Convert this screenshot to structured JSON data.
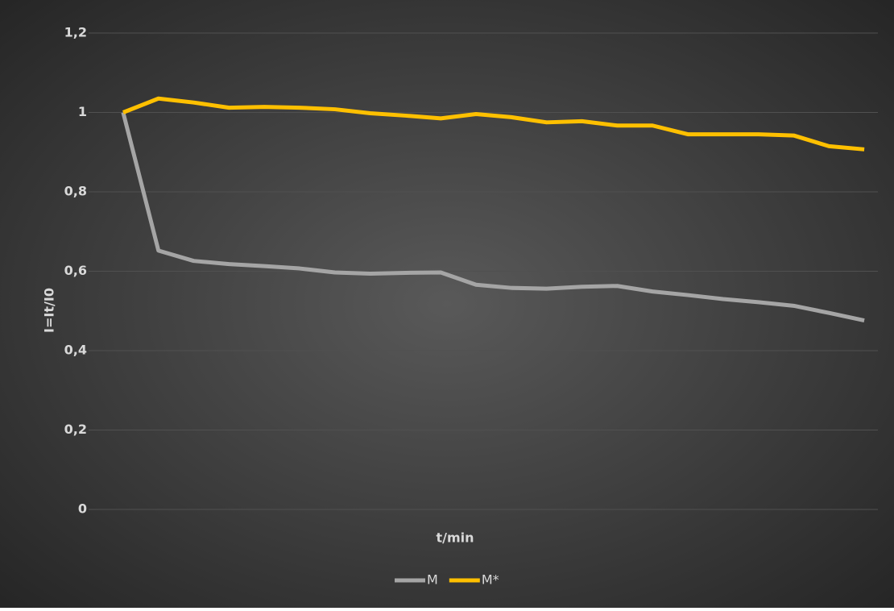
{
  "chart_data": {
    "type": "line",
    "x_label": "t/min",
    "y_label": "I=It/I0",
    "categories": [
      null,
      null,
      null,
      null,
      null,
      null,
      null,
      null,
      null,
      null,
      null,
      null,
      null,
      null,
      null,
      null,
      null,
      null,
      null,
      null,
      null,
      null
    ],
    "series": [
      {
        "name": "M",
        "color": "#a5a5a5",
        "values": [
          1.0,
          0.652,
          0.626,
          0.618,
          0.613,
          0.607,
          0.597,
          0.594,
          0.596,
          0.597,
          0.566,
          0.558,
          0.556,
          0.561,
          0.563,
          0.549,
          0.54,
          0.53,
          0.522,
          0.513,
          0.495,
          0.476
        ]
      },
      {
        "name": "M*",
        "color": "#ffc000",
        "values": [
          1.0,
          1.035,
          1.025,
          1.012,
          1.014,
          1.012,
          1.008,
          0.998,
          0.992,
          0.985,
          0.996,
          0.988,
          0.975,
          0.978,
          0.967,
          0.967,
          0.945,
          0.945,
          0.945,
          0.942,
          0.915,
          0.907
        ]
      }
    ],
    "ylim": [
      0,
      1.2
    ],
    "yticks": [
      0,
      {
        "value": 0.2,
        "label": "0,2"
      },
      {
        "value": 0.4,
        "label": "0,4"
      },
      {
        "value": 0.6,
        "label": "0,6"
      },
      {
        "value": 0.8,
        "label": "0,8"
      },
      1,
      {
        "value": 1.2,
        "label": "1,2"
      }
    ],
    "grid": true,
    "legend": "bottom"
  }
}
